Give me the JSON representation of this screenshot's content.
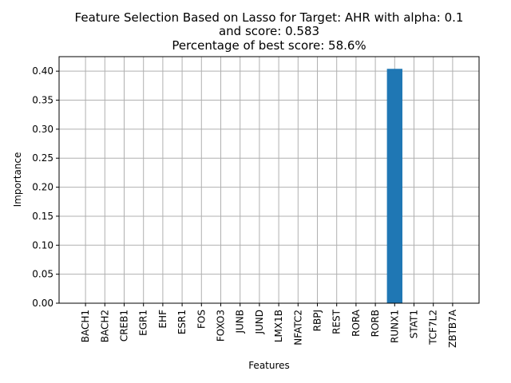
{
  "chart_data": {
    "type": "bar",
    "title_lines": [
      "Feature Selection Based on Lasso for Target: AHR with alpha: 0.1",
      "and score: 0.583",
      "Percentage of best score: 58.6%"
    ],
    "xlabel": "Features",
    "ylabel": "Importance",
    "categories": [
      "BACH1",
      "BACH2",
      "CREB1",
      "EGR1",
      "EHF",
      "ESR1",
      "FOS",
      "FOXO3",
      "JUNB",
      "JUND",
      "LMX1B",
      "NFATC2",
      "RBPJ",
      "REST",
      "RORA",
      "RORB",
      "RUNX1",
      "STAT1",
      "TCF7L2",
      "ZBTB7A"
    ],
    "values": [
      0,
      0,
      0,
      0,
      0,
      0,
      0,
      0,
      0,
      0,
      0,
      0,
      0,
      0,
      0,
      0,
      0.404,
      0,
      0,
      0
    ],
    "ylim": [
      0,
      0.425
    ],
    "yticks": [
      0.0,
      0.05,
      0.1,
      0.15,
      0.2,
      0.25,
      0.3,
      0.35,
      0.4
    ],
    "ytick_labels": [
      "0.00",
      "0.05",
      "0.10",
      "0.15",
      "0.20",
      "0.25",
      "0.30",
      "0.35",
      "0.40"
    ],
    "grid": true,
    "bar_color": "#1f77b4",
    "grid_color": "#b0b0b0"
  }
}
